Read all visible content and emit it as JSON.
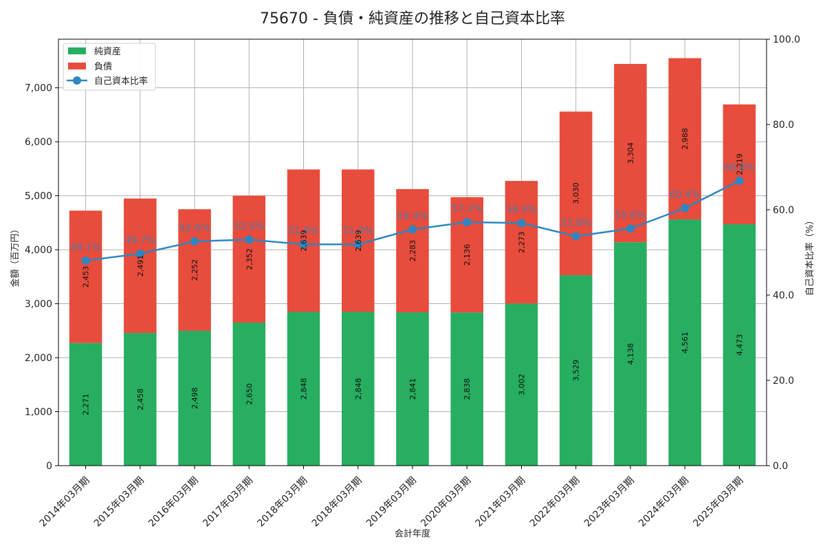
{
  "chart_data": {
    "type": "bar",
    "title": "75670 - 負債・純資産の推移と自己資本比率",
    "xlabel": "会計年度",
    "ylabel": "金額（百万円）",
    "y2label": "自己資本比率（%）",
    "ylim": [
      0,
      7900
    ],
    "y2lim": [
      0,
      100
    ],
    "yticks": [
      0,
      1000,
      2000,
      3000,
      4000,
      5000,
      6000,
      7000
    ],
    "ytick_labels": [
      "0",
      "1,000",
      "2,000",
      "3,000",
      "4,000",
      "5,000",
      "6,000",
      "7,000"
    ],
    "y2ticks": [
      0,
      20,
      40,
      60,
      80,
      100
    ],
    "y2tick_labels": [
      "0.0",
      "20.0",
      "40.0",
      "60.0",
      "80.0",
      "100.0"
    ],
    "grid": true,
    "legend_position": "top-left",
    "categories": [
      "2014年03月期",
      "2015年03月期",
      "2016年03月期",
      "2017年03月期",
      "2018年03月期",
      "2018年03月期",
      "2019年03月期",
      "2020年03月期",
      "2021年03月期",
      "2022年03月期",
      "2023年03月期",
      "2024年03月期",
      "2025年03月期"
    ],
    "series": [
      {
        "name": "純資産",
        "kind": "bar",
        "color": "#27ae60",
        "values": [
          2271,
          2458,
          2498,
          2650,
          2848,
          2848,
          2841,
          2838,
          3002,
          3529,
          4138,
          4561,
          4473
        ],
        "labels": [
          "2,271",
          "2,458",
          "2,498",
          "2,650",
          "2,848",
          "2,848",
          "2,841",
          "2,838",
          "3,002",
          "3,529",
          "4,138",
          "4,561",
          "4,473"
        ]
      },
      {
        "name": "負債",
        "kind": "bar",
        "color": "#e74c3c",
        "values": [
          2453,
          2491,
          2252,
          2352,
          2639,
          2639,
          2283,
          2136,
          2273,
          3030,
          3304,
          2988,
          2219
        ],
        "labels": [
          "2,453",
          "2,491",
          "2,252",
          "2,352",
          "2,639",
          "2,639",
          "2,283",
          "2,136",
          "2,273",
          "3,030",
          "3,304",
          "2,988",
          "2,219"
        ]
      },
      {
        "name": "自己資本比率",
        "kind": "line",
        "axis": "right",
        "color": "#2e86c1",
        "values": [
          48.1,
          49.7,
          52.6,
          53.0,
          51.9,
          51.9,
          55.4,
          57.1,
          56.9,
          53.8,
          55.6,
          60.4,
          66.8
        ],
        "labels": [
          "48.1%",
          "49.7%",
          "52.6%",
          "53.0%",
          "51.9%",
          "51.9%",
          "55.4%",
          "57.1%",
          "56.9%",
          "53.8%",
          "55.6%",
          "60.4%",
          "66.8%"
        ]
      }
    ]
  }
}
